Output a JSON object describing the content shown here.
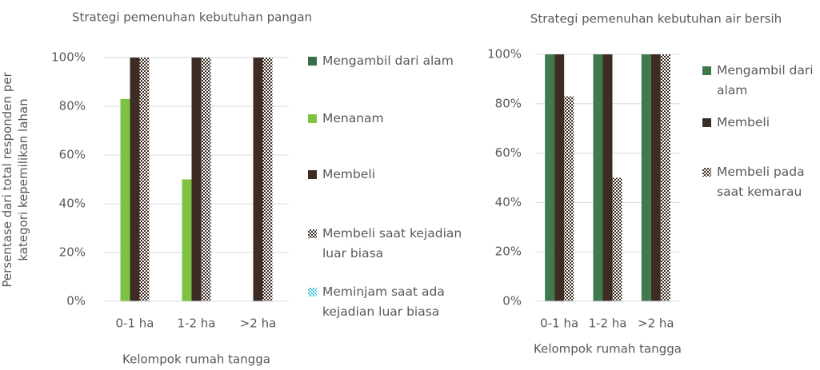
{
  "chart_data": [
    {
      "type": "bar",
      "title": "Strategi pemenuhan kebutuhan pangan",
      "y_label": "Persentase dari total responden per kategori kepemilikan lahan",
      "x_label": "Kelompok rumah tangga",
      "categories": [
        "0-1 ha",
        "1-2 ha",
        ">2 ha"
      ],
      "series": [
        {
          "name": "Mengambil dari alam",
          "color": "#3b6e47",
          "values": [
            0,
            0,
            0
          ]
        },
        {
          "name": "Menanam",
          "color": "#7dc242",
          "values": [
            83,
            50,
            0
          ]
        },
        {
          "name": "Membeli",
          "color": "#3d2c23",
          "values": [
            100,
            100,
            100
          ]
        },
        {
          "name": "Membeli saat kejadian luar biasa",
          "color": "#3d2c23",
          "pattern": true,
          "values": [
            100,
            100,
            100
          ]
        },
        {
          "name": "Meminjam saat ada kejadian luar biasa",
          "color": "#3fc5e0",
          "pattern": true,
          "values": [
            0,
            0,
            0
          ]
        }
      ],
      "ylim": [
        0,
        100
      ],
      "yticks": [
        {
          "value": 0,
          "label": "0%"
        },
        {
          "value": 20,
          "label": "20%"
        },
        {
          "value": 40,
          "label": "40%"
        },
        {
          "value": 60,
          "label": "60%"
        },
        {
          "value": 80,
          "label": "80%"
        },
        {
          "value": 100,
          "label": "100%"
        }
      ],
      "grid": true
    },
    {
      "type": "bar",
      "title": "Strategi pemenuhan kebutuhan air bersih",
      "x_label": "Kelompok rumah tangga",
      "categories": [
        "0-1 ha",
        "1-2 ha",
        ">2 ha"
      ],
      "series": [
        {
          "name": "Mengambil dari alam",
          "color": "#3e7a4e",
          "values": [
            100,
            100,
            100
          ]
        },
        {
          "name": "Membeli",
          "color": "#3d2c23",
          "values": [
            100,
            100,
            100
          ]
        },
        {
          "name": "Membeli pada saat kemarau",
          "color": "#3d2c23",
          "pattern": true,
          "values": [
            83,
            50,
            100
          ]
        }
      ],
      "ylim": [
        0,
        100
      ],
      "yticks": [
        {
          "value": 0,
          "label": "0%"
        },
        {
          "value": 20,
          "label": "20%"
        },
        {
          "value": 40,
          "label": "40%"
        },
        {
          "value": 60,
          "label": "60%"
        },
        {
          "value": 80,
          "label": "80%"
        },
        {
          "value": 100,
          "label": "100%"
        }
      ],
      "grid": true
    }
  ]
}
